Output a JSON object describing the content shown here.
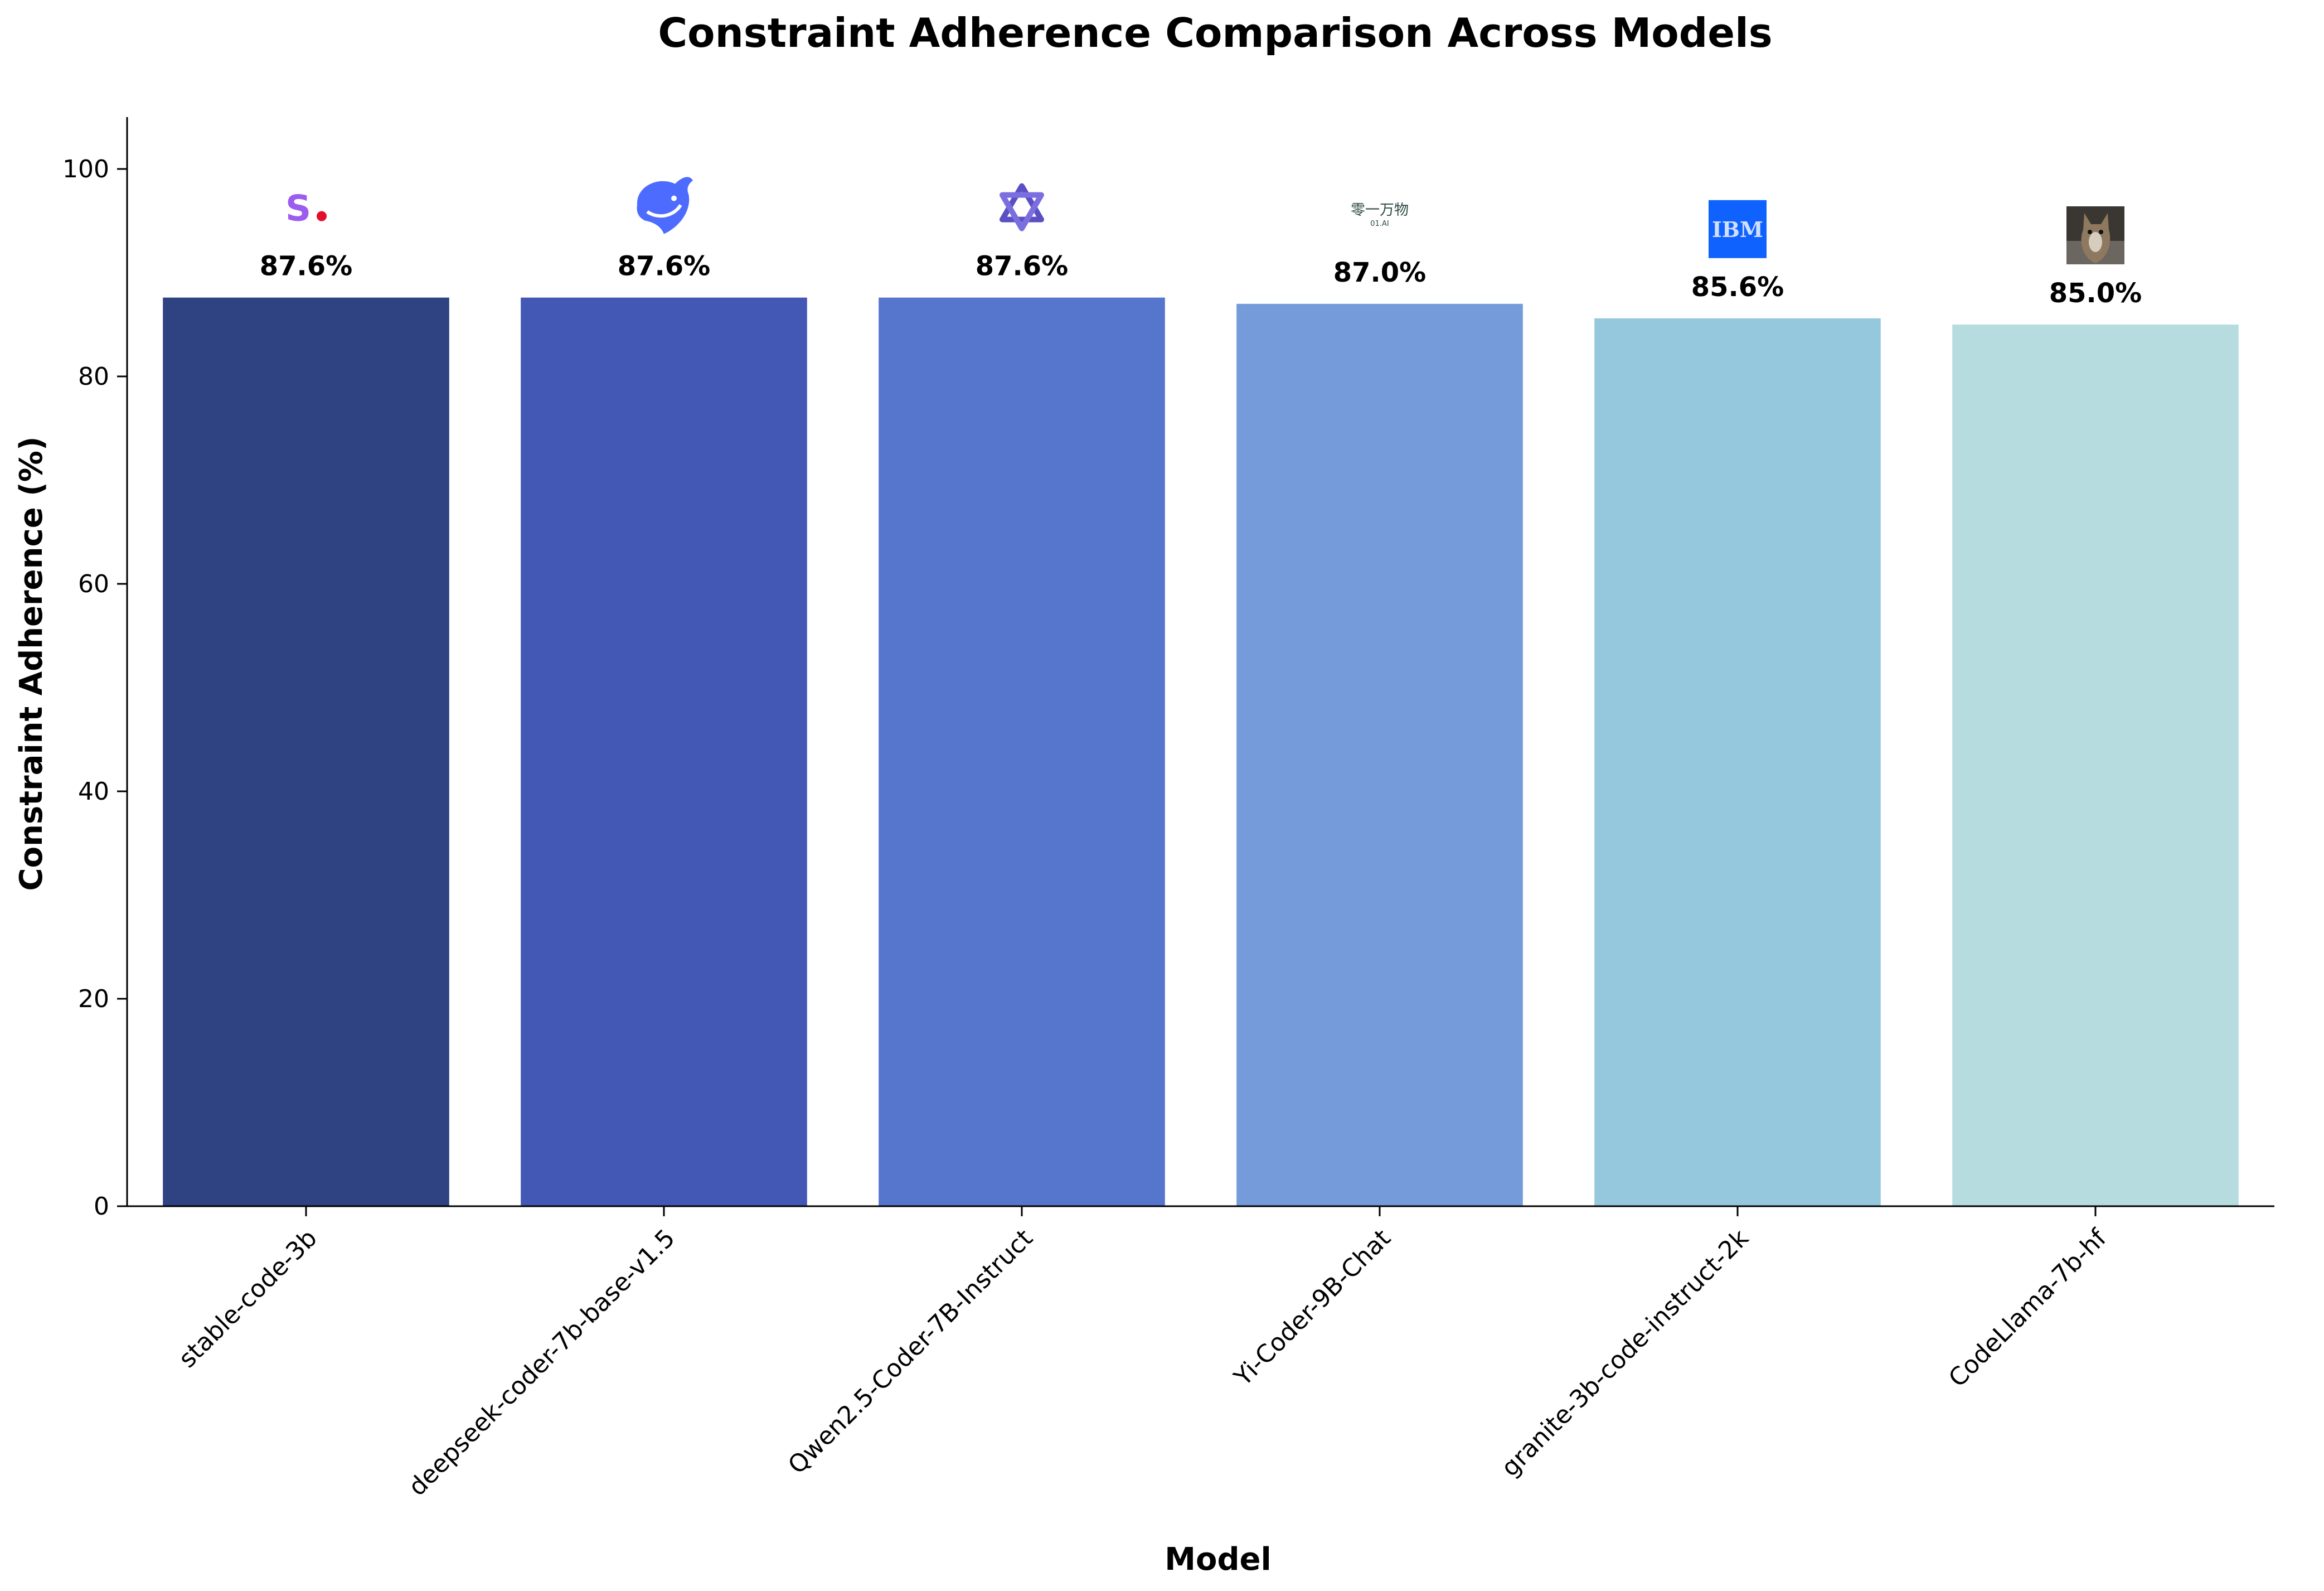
{
  "chart_data": {
    "type": "bar",
    "title": "Constraint Adherence Comparison Across Models",
    "xlabel": "Model",
    "ylabel": "Constraint Adherence (%)",
    "ylim": [
      0,
      105
    ],
    "yticks": [
      0,
      20,
      40,
      60,
      80,
      100
    ],
    "grid": false,
    "categories": [
      "stable-code-3b",
      "deepseek-coder-7b-base-v1.5",
      "Qwen2.5-Coder-7B-Instruct",
      "Yi-Coder-9B-Chat",
      "granite-3b-code-instruct-2k",
      "CodeLlama-7b-hf"
    ],
    "values": [
      87.6,
      87.6,
      87.6,
      87.0,
      85.6,
      85.0
    ],
    "value_labels": [
      "87.6%",
      "87.6%",
      "87.6%",
      "87.0%",
      "85.6%",
      "85.0%"
    ],
    "colors": [
      "#2f4282",
      "#4357b5",
      "#5675cd",
      "#759bdb",
      "#96c8dd",
      "#b6dcdf"
    ],
    "logos": [
      {
        "icon": "stability-ai-logo"
      },
      {
        "icon": "deepseek-whale-logo"
      },
      {
        "icon": "qwen-logo"
      },
      {
        "icon": "01ai-logo",
        "text": "零一万物",
        "subtext": "01.AI"
      },
      {
        "icon": "ibm-logo",
        "text": "IBM"
      },
      {
        "icon": "llama-photo-logo"
      }
    ]
  }
}
